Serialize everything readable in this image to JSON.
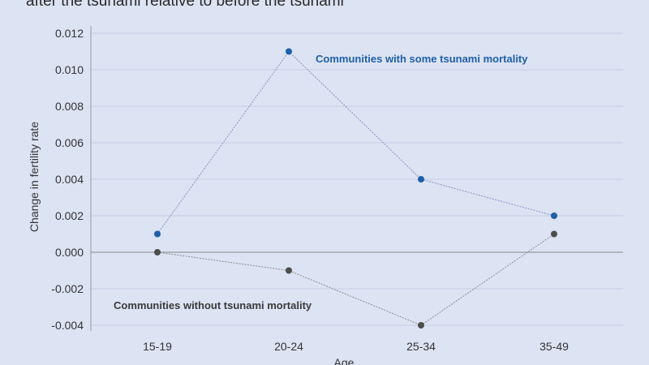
{
  "chart_data": {
    "type": "line",
    "title": "after the tsunami relative to before the tsunami",
    "xlabel": "Age",
    "ylabel": "Change in fertility rate",
    "categories": [
      "15-19",
      "20-24",
      "25-34",
      "35-49"
    ],
    "ylim": [
      -0.004,
      0.012
    ],
    "yticks": [
      "0.012",
      "0.010",
      "0.008",
      "0.006",
      "0.004",
      "0.002",
      "0.000",
      "-0.002",
      "-0.004"
    ],
    "grid": true,
    "series": [
      {
        "name": "Communities with some tsunami mortality",
        "values": [
          0.001,
          0.011,
          0.004,
          0.002
        ],
        "color": "#1f5fa8"
      },
      {
        "name": "Communities without tsunami mortality",
        "values": [
          0.0,
          -0.001,
          -0.004,
          0.001
        ],
        "color": "#4d4d4d"
      }
    ],
    "colors": {
      "background": "#dce3f3",
      "grid": "#c6cfe4",
      "zero_line": "#888888"
    }
  }
}
